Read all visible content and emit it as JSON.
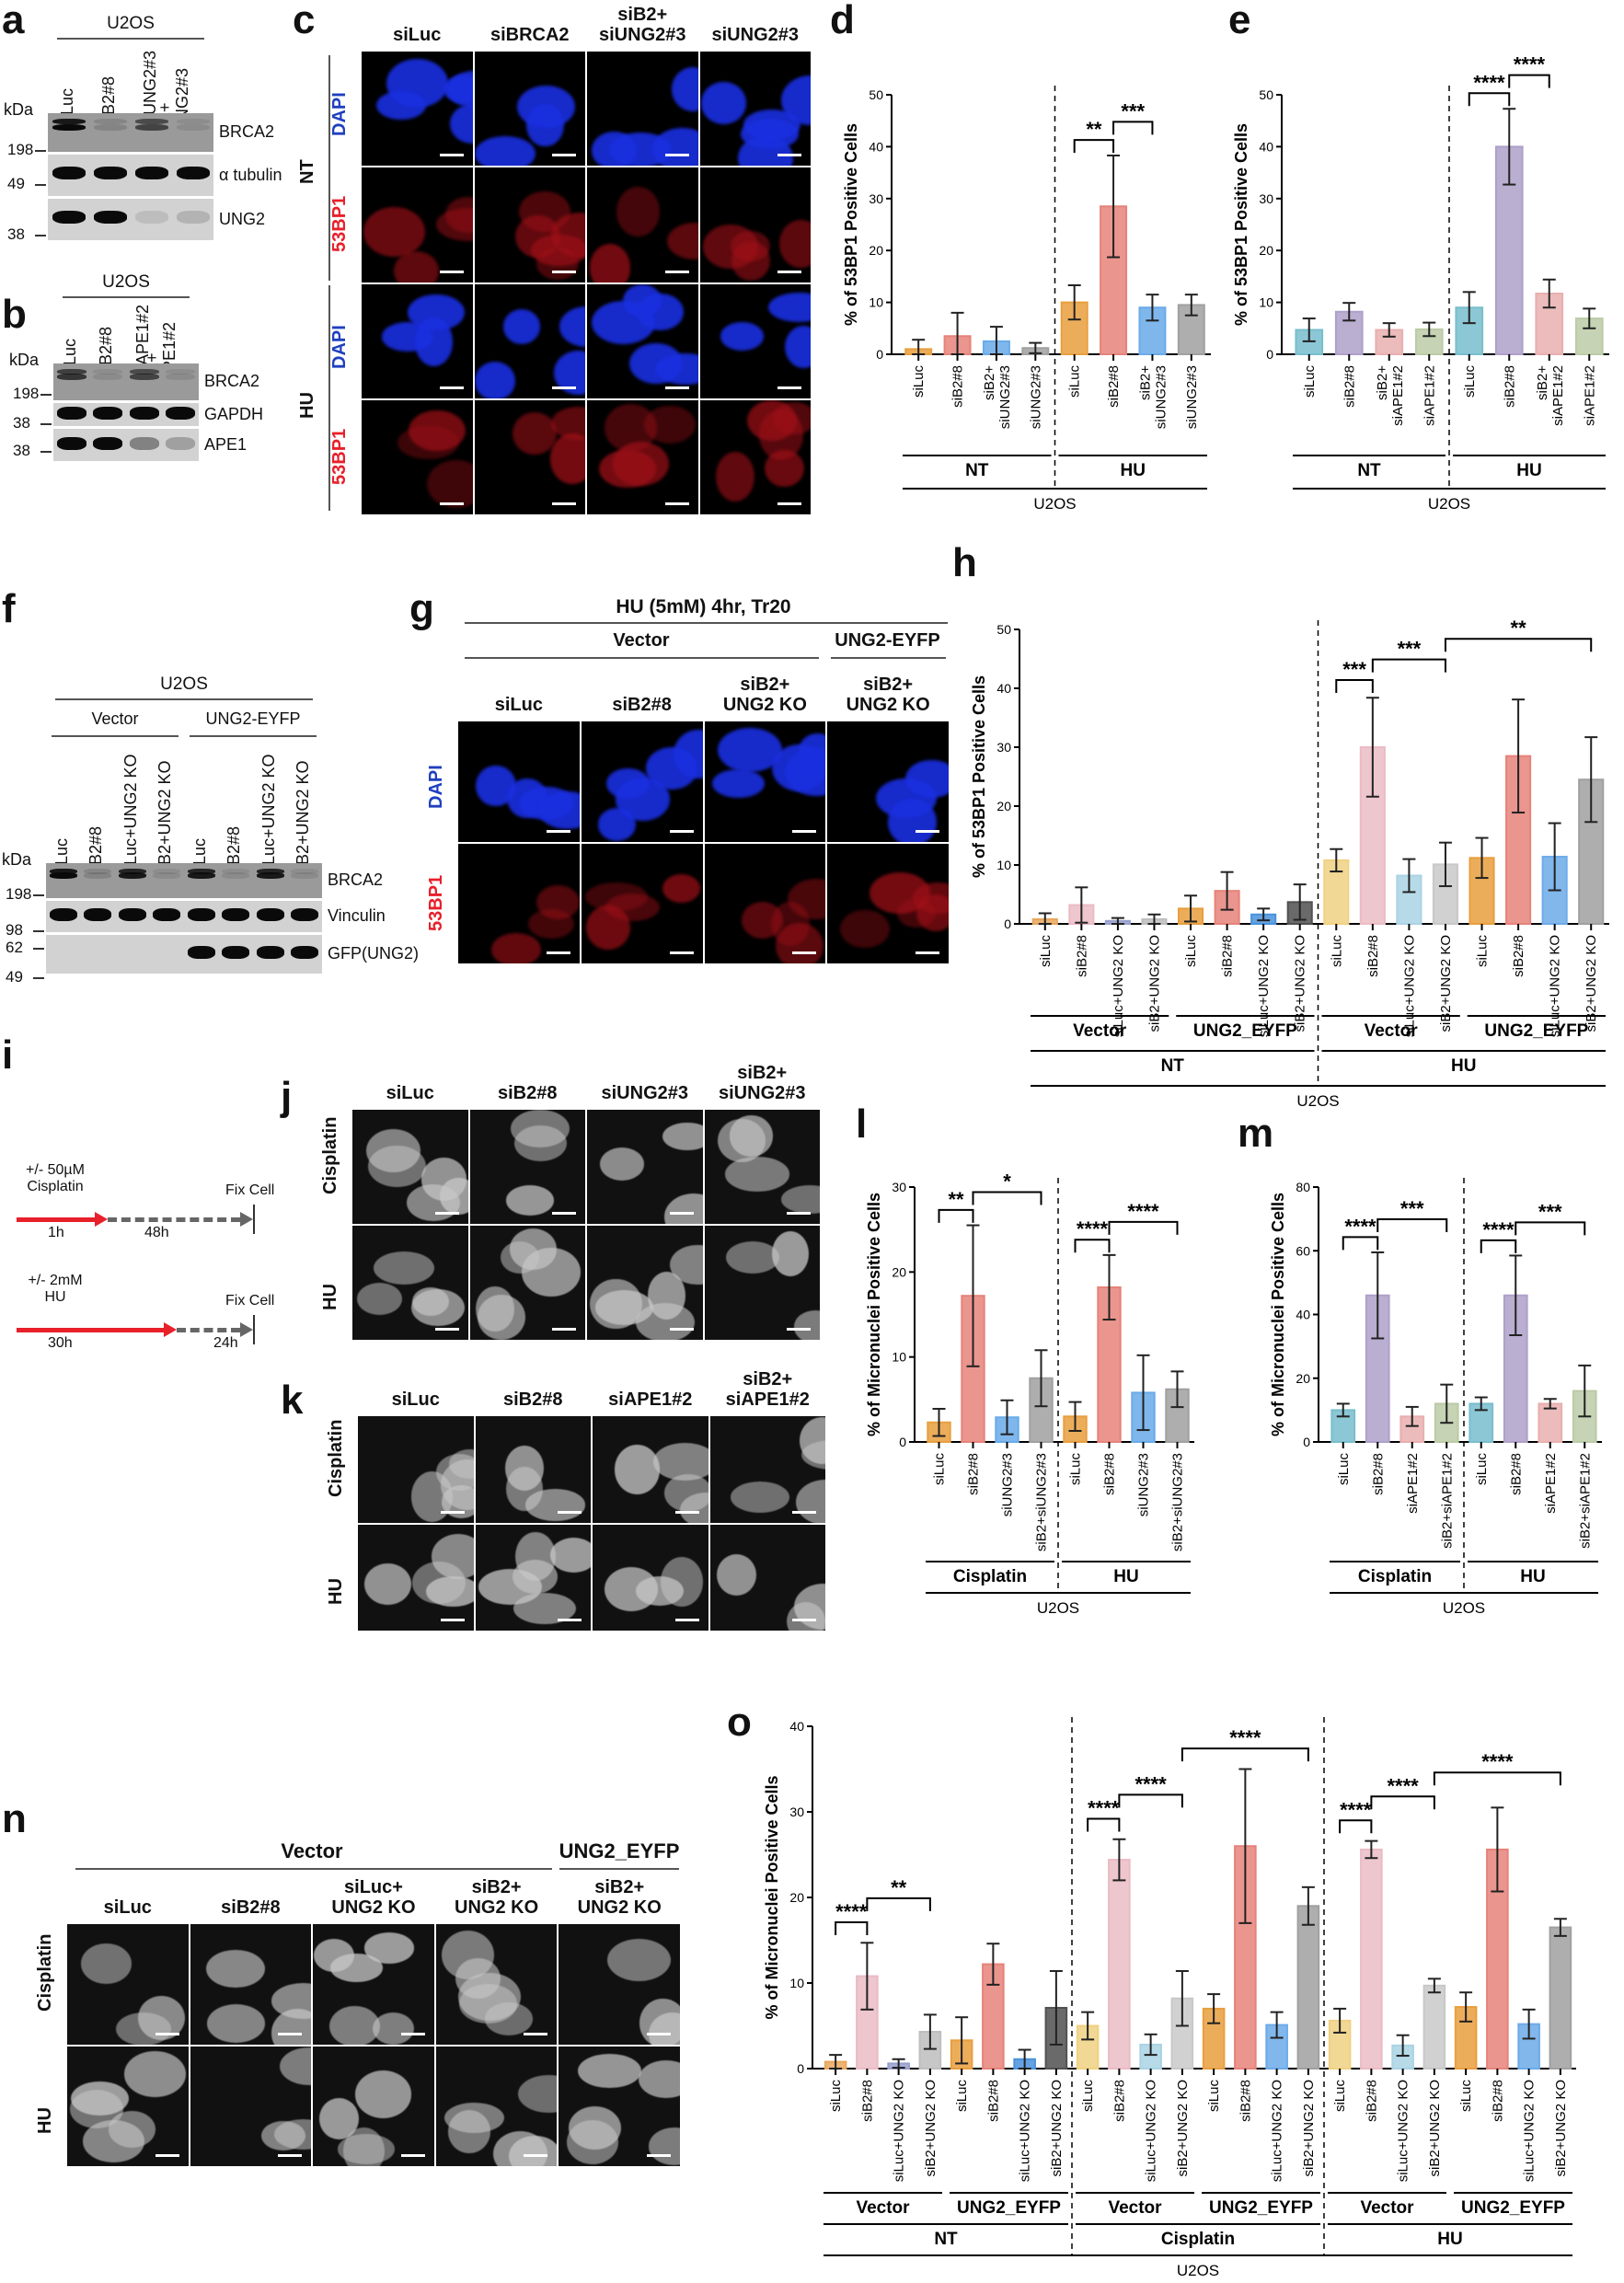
{
  "panel_letters": {
    "a": "a",
    "b": "b",
    "c": "c",
    "d": "d",
    "e": "e",
    "f": "f",
    "g": "g",
    "h": "h",
    "i": "i",
    "j": "j",
    "k": "k",
    "l": "l",
    "m": "m",
    "n": "n",
    "o": "o"
  },
  "blot_a": {
    "title": "U2OS",
    "lanes": [
      "siLuc",
      "siB2#8",
      "siUNG2#3",
      "siB2+\nsiUNG2#3"
    ],
    "kda_label": "kDa",
    "markers": [
      "198",
      "49",
      "38"
    ],
    "proteins": [
      "BRCA2",
      "α tubulin",
      "UNG2"
    ],
    "band_intensity": [
      [
        1,
        0.15,
        0.6,
        0.1
      ],
      [
        1,
        1,
        1,
        1
      ],
      [
        1,
        1,
        0.1,
        0.15
      ]
    ]
  },
  "blot_b": {
    "title": "U2OS",
    "lanes": [
      "siLuc",
      "siB2#8",
      "siAPE1#2",
      "siB2+\nsiAPE1#2"
    ],
    "kda_label": "kDa",
    "markers": [
      "198",
      "38",
      "38"
    ],
    "proteins": [
      "BRCA2",
      "GAPDH",
      "APE1"
    ],
    "band_intensity": [
      [
        0.7,
        0.1,
        0.6,
        0.1
      ],
      [
        1,
        1,
        1,
        1
      ],
      [
        1,
        1,
        0.4,
        0.25
      ]
    ]
  },
  "blot_f": {
    "title": "U2OS",
    "groups": [
      "Vector",
      "UNG2-EYFP"
    ],
    "lanes": [
      "siLuc",
      "siB2#8",
      "siLuc+UNG2 KO",
      "siB2+UNG2 KO",
      "siLuc",
      "siB2#8",
      "siLuc+UNG2 KO",
      "siB2+UNG2 KO"
    ],
    "kda_label": "kDa",
    "markers": [
      "198",
      "98",
      "62",
      "49"
    ],
    "proteins": [
      "BRCA2",
      "Vinculin",
      "GFP(UNG2)"
    ],
    "band_intensity": [
      [
        1,
        0.15,
        0.9,
        0.1,
        0.9,
        0.1,
        0.9,
        0.1
      ],
      [
        1,
        1,
        1,
        1,
        1,
        1,
        1,
        1
      ],
      [
        0,
        0,
        0,
        0,
        1,
        1,
        1,
        1
      ]
    ]
  },
  "images_c": {
    "columns": [
      "siLuc",
      "siBRCA2",
      "siB2+\nsiUNG2#3",
      "siUNG2#3"
    ],
    "groups": [
      "NT",
      "HU"
    ],
    "rows": [
      "DAPI",
      "53BP1",
      "DAPI",
      "53BP1"
    ],
    "row_colors": [
      "#1f3fbf",
      "#e8202a",
      "#1f3fbf",
      "#e8202a"
    ]
  },
  "images_g": {
    "title": "HU (5mM) 4hr, Tr20",
    "groups": [
      "Vector",
      "UNG2-EYFP"
    ],
    "columns": [
      "siLuc",
      "siB2#8",
      "siB2+\nUNG2 KO",
      "siB2+\nUNG2 KO"
    ],
    "rows": [
      "DAPI",
      "53BP1"
    ],
    "row_colors": [
      "#1f3fbf",
      "#e8202a"
    ]
  },
  "schematic_i": {
    "cisplatin": {
      "treatment": "+/- 50µM\nCisplatin",
      "t1": "1h",
      "t2": "48h",
      "end": "Fix Cell"
    },
    "hu": {
      "treatment": "+/- 2mM\nHU",
      "t1": "30h",
      "t2": "24h",
      "end": "Fix Cell"
    },
    "colors": {
      "treatment": "#e8202a",
      "chase": "#666666"
    }
  },
  "images_j": {
    "columns": [
      "siLuc",
      "siB2#8",
      "siUNG2#3",
      "siB2+\nsiUNG2#3"
    ],
    "rows": [
      "Cisplatin",
      "HU"
    ]
  },
  "images_k": {
    "columns": [
      "siLuc",
      "siB2#8",
      "siAPE1#2",
      "siB2+\nsiAPE1#2"
    ],
    "rows": [
      "Cisplatin",
      "HU"
    ]
  },
  "images_n": {
    "groups": [
      "Vector",
      "UNG2_EYFP"
    ],
    "columns": [
      "siLuc",
      "siB2#8",
      "siLuc+\nUNG2 KO",
      "siB2+\nUNG2 KO",
      "siB2+\nUNG2 KO"
    ],
    "rows": [
      "Cisplatin",
      "HU"
    ]
  },
  "chart_data": [
    {
      "id": "d",
      "type": "bar",
      "ylabel": "% of 53BP1 Positive Cells",
      "ylim": [
        0,
        50
      ],
      "yticks": [
        0,
        10,
        20,
        30,
        40,
        50
      ],
      "categories": [
        "siLuc",
        "siB2#8",
        "siB2+\nsiUNG2#3",
        "siUNG2#3",
        "siLuc",
        "siB2#8",
        "siB2+\nsiUNG2#3",
        "siUNG2#3"
      ],
      "values": [
        1,
        3.5,
        2.5,
        1.2,
        10,
        28.5,
        9,
        9.5
      ],
      "errors": [
        1.8,
        4.5,
        2.8,
        1,
        3.3,
        9.8,
        2.5,
        2
      ],
      "colors": [
        "#f4a742",
        "#f28a80",
        "#6fb4f5",
        "#a8a8a8",
        "#f4a742",
        "#f28a80",
        "#6fb4f5",
        "#a8a8a8"
      ],
      "dividers": [
        4
      ],
      "groups": [
        [
          {
            "label": "NT",
            "from": 0,
            "to": 3
          },
          {
            "label": "HU",
            "from": 4,
            "to": 7
          }
        ],
        [
          {
            "label": "U2OS",
            "from": 0,
            "to": 7
          }
        ]
      ],
      "significance": [
        {
          "from": 4,
          "to": 5,
          "label": "**"
        },
        {
          "from": 5,
          "to": 6,
          "label": "***"
        }
      ]
    },
    {
      "id": "e",
      "type": "bar",
      "ylabel": "% of 53BP1 Positive Cells",
      "ylim": [
        0,
        50
      ],
      "yticks": [
        0,
        10,
        20,
        30,
        40,
        50
      ],
      "categories": [
        "siLuc",
        "siB2#8",
        "siB2+\nsiAPE1#2",
        "siAPE1#2",
        "siLuc",
        "siB2#8",
        "siB2+\nsiAPE1#2",
        "siAPE1#2"
      ],
      "values": [
        4.7,
        8.2,
        4.7,
        4.8,
        9,
        40,
        11.7,
        6.9
      ],
      "errors": [
        2.2,
        1.7,
        1.3,
        1.3,
        3,
        7.3,
        2.7,
        1.9
      ],
      "colors": [
        "#7ec8d8",
        "#b7a8d4",
        "#f5b8b8",
        "#c5d6b0",
        "#7ec8d8",
        "#b7a8d4",
        "#f5b8b8",
        "#c5d6b0"
      ],
      "dividers": [
        4
      ],
      "groups": [
        [
          {
            "label": "NT",
            "from": 0,
            "to": 3
          },
          {
            "label": "HU",
            "from": 4,
            "to": 7
          }
        ],
        [
          {
            "label": "U2OS",
            "from": 0,
            "to": 7
          }
        ]
      ],
      "significance": [
        {
          "from": 4,
          "to": 5,
          "label": "****"
        },
        {
          "from": 5,
          "to": 6,
          "label": "****"
        }
      ]
    },
    {
      "id": "h",
      "type": "bar",
      "ylabel": "% of 53BP1 Positive Cells",
      "ylim": [
        0,
        50
      ],
      "yticks": [
        0,
        10,
        20,
        30,
        40,
        50
      ],
      "categories": [
        "siLuc",
        "siB2#8",
        "siLuc+UNG2 KO",
        "siB2+UNG2 KO",
        "siLuc",
        "siB2#8",
        "siLuc+UNG2 KO",
        "siB2+UNG2 KO",
        "siLuc",
        "siB2#8",
        "siLuc+UNG2 KO",
        "siB2+UNG2 KO",
        "siLuc",
        "siB2#8",
        "siLuc+UNG2 KO",
        "siB2+UNG2 KO"
      ],
      "values": [
        0.8,
        3.2,
        0.5,
        0.8,
        2.6,
        5.6,
        1.6,
        3.7,
        10.8,
        30,
        8.2,
        10.1,
        11.2,
        28.5,
        11.4,
        24.5
      ],
      "errors": [
        1,
        3,
        0.5,
        0.8,
        2.2,
        3.2,
        1,
        3,
        1.9,
        8.4,
        2.8,
        3.7,
        3.4,
        9.6,
        5.7,
        7.2
      ],
      "colors": [
        "#f4b062",
        "#f7c5cf",
        "#9fa8d8",
        "#c8c8c8",
        "#f4a742",
        "#f28a80",
        "#4e9ae8",
        "#555555",
        "#fddc8a",
        "#f7c5cf",
        "#b3def0",
        "#d3d3d3",
        "#f4a742",
        "#f28a80",
        "#72b4f5",
        "#a8a8a8"
      ],
      "dividers": [
        8
      ],
      "groups": [
        [
          {
            "label": "Vector",
            "from": 0,
            "to": 3
          },
          {
            "label": "UNG2_EYFP",
            "from": 4,
            "to": 7
          },
          {
            "label": "Vector",
            "from": 8,
            "to": 11
          },
          {
            "label": "UNG2_EYFP",
            "from": 12,
            "to": 15
          }
        ],
        [
          {
            "label": "NT",
            "from": 0,
            "to": 7
          },
          {
            "label": "HU",
            "from": 8,
            "to": 15
          }
        ],
        [
          {
            "label": "U2OS",
            "from": 0,
            "to": 15
          }
        ]
      ],
      "significance": [
        {
          "from": 8,
          "to": 9,
          "label": "***"
        },
        {
          "from": 9,
          "to": 11,
          "label": "***"
        },
        {
          "from": 11,
          "to": 15,
          "label": "**"
        }
      ]
    },
    {
      "id": "l",
      "type": "bar",
      "ylabel": "% of Micronuclei Positive Cells",
      "ylim": [
        0,
        30
      ],
      "yticks": [
        0,
        10,
        20,
        30
      ],
      "categories": [
        "siLuc",
        "siB2#8",
        "siUNG2#3",
        "siB2+siUNG2#3",
        "siLuc",
        "siB2#8",
        "siUNG2#3",
        "siB2+siUNG2#3"
      ],
      "values": [
        2.3,
        17.2,
        2.9,
        7.5,
        3,
        18.2,
        5.8,
        6.2
      ],
      "errors": [
        1.6,
        8.3,
        2,
        3.3,
        1.7,
        3.8,
        4.4,
        2.1
      ],
      "colors": [
        "#f4a742",
        "#f28a80",
        "#6fb4f5",
        "#a8a8a8",
        "#f4a742",
        "#f28a80",
        "#6fb4f5",
        "#a8a8a8"
      ],
      "dividers": [
        4
      ],
      "groups": [
        [
          {
            "label": "Cisplatin",
            "from": 0,
            "to": 3
          },
          {
            "label": "HU",
            "from": 4,
            "to": 7
          }
        ],
        [
          {
            "label": "U2OS",
            "from": 0,
            "to": 7
          }
        ]
      ],
      "significance": [
        {
          "from": 0,
          "to": 1,
          "label": "**"
        },
        {
          "from": 1,
          "to": 3,
          "label": "*"
        },
        {
          "from": 4,
          "to": 5,
          "label": "****"
        },
        {
          "from": 5,
          "to": 7,
          "label": "****"
        }
      ]
    },
    {
      "id": "m",
      "type": "bar",
      "ylabel": "% of Micronuclei Positive Cells",
      "ylim": [
        0,
        80
      ],
      "yticks": [
        0,
        20,
        40,
        60,
        80
      ],
      "categories": [
        "siLuc",
        "siB2#8",
        "siAPE1#2",
        "siB2+siAPE1#2",
        "siLuc",
        "siB2#8",
        "siAPE1#2",
        "siB2+siAPE1#2"
      ],
      "values": [
        10,
        46,
        8,
        12,
        12,
        46,
        12,
        16
      ],
      "errors": [
        2,
        13.5,
        3,
        6,
        2,
        12.5,
        1.5,
        8
      ],
      "colors": [
        "#7ec8d8",
        "#b7a8d4",
        "#f5b8b8",
        "#c5d6b0",
        "#7ec8d8",
        "#b7a8d4",
        "#f5b8b8",
        "#c5d6b0"
      ],
      "dividers": [
        4
      ],
      "groups": [
        [
          {
            "label": "Cisplatin",
            "from": 0,
            "to": 3
          },
          {
            "label": "HU",
            "from": 4,
            "to": 7
          }
        ],
        [
          {
            "label": "U2OS",
            "from": 0,
            "to": 7
          }
        ]
      ],
      "significance": [
        {
          "from": 0,
          "to": 1,
          "label": "****"
        },
        {
          "from": 1,
          "to": 3,
          "label": "***"
        },
        {
          "from": 4,
          "to": 5,
          "label": "****"
        },
        {
          "from": 5,
          "to": 7,
          "label": "***"
        }
      ]
    },
    {
      "id": "o",
      "type": "bar",
      "ylabel": "% of Micronuclei Positive Cells",
      "ylim": [
        0,
        40
      ],
      "yticks": [
        0,
        10,
        20,
        30,
        40
      ],
      "categories": [
        "siLuc",
        "siB2#8",
        "siLuc+UNG2 KO",
        "siB2+UNG2 KO",
        "siLuc",
        "siB2#8",
        "siLuc+UNG2 KO",
        "siB2+UNG2 KO",
        "siLuc",
        "siB2#8",
        "siLuc+UNG2 KO",
        "siB2+UNG2 KO",
        "siLuc",
        "siB2#8",
        "siLuc+UNG2 KO",
        "siB2+UNG2 KO",
        "siLuc",
        "siB2#8",
        "siLuc+UNG2 KO",
        "siB2+UNG2 KO",
        "siLuc",
        "siB2#8",
        "siLuc+UNG2 KO",
        "siB2+UNG2 KO"
      ],
      "values": [
        0.8,
        10.8,
        0.6,
        4.3,
        3.3,
        12.2,
        1.1,
        7.1,
        5,
        24.4,
        2.8,
        8.2,
        7,
        26,
        5.1,
        19,
        5.6,
        25.6,
        2.7,
        9.7,
        7.2,
        25.6,
        5.2,
        16.5
      ],
      "errors": [
        0.8,
        3.9,
        0.5,
        2,
        2.7,
        2.4,
        1.1,
        4.3,
        1.6,
        2.4,
        1.2,
        3.2,
        1.7,
        9,
        1.5,
        2.2,
        1.4,
        1,
        1.2,
        0.8,
        1.7,
        4.9,
        1.7,
        1
      ],
      "colors": [
        "#f4b062",
        "#f7c5cf",
        "#9fa8d8",
        "#c8c8c8",
        "#f4a742",
        "#f28a80",
        "#4e9ae8",
        "#555555",
        "#fddc8a",
        "#f7c5cf",
        "#b3def0",
        "#d3d3d3",
        "#f4a742",
        "#f28a80",
        "#72b4f5",
        "#a8a8a8",
        "#fddc8a",
        "#f7c5cf",
        "#b3def0",
        "#d3d3d3",
        "#f4a742",
        "#f28a80",
        "#72b4f5",
        "#a8a8a8"
      ],
      "dividers": [
        8,
        16
      ],
      "groups": [
        [
          {
            "label": "Vector",
            "from": 0,
            "to": 3
          },
          {
            "label": "UNG2_EYFP",
            "from": 4,
            "to": 7
          },
          {
            "label": "Vector",
            "from": 8,
            "to": 11
          },
          {
            "label": "UNG2_EYFP",
            "from": 12,
            "to": 15
          },
          {
            "label": "Vector",
            "from": 16,
            "to": 19
          },
          {
            "label": "UNG2_EYFP",
            "from": 20,
            "to": 23
          }
        ],
        [
          {
            "label": "NT",
            "from": 0,
            "to": 7
          },
          {
            "label": "Cisplatin",
            "from": 8,
            "to": 15
          },
          {
            "label": "HU",
            "from": 16,
            "to": 23
          }
        ],
        [
          {
            "label": "U2OS",
            "from": 0,
            "to": 23
          }
        ]
      ],
      "significance": [
        {
          "from": 0,
          "to": 1,
          "label": "****"
        },
        {
          "from": 1,
          "to": 3,
          "label": "**"
        },
        {
          "from": 8,
          "to": 9,
          "label": "****"
        },
        {
          "from": 9,
          "to": 11,
          "label": "****"
        },
        {
          "from": 11,
          "to": 15,
          "label": "****"
        },
        {
          "from": 16,
          "to": 17,
          "label": "****"
        },
        {
          "from": 17,
          "to": 19,
          "label": "****"
        },
        {
          "from": 19,
          "to": 23,
          "label": "****"
        }
      ]
    }
  ]
}
